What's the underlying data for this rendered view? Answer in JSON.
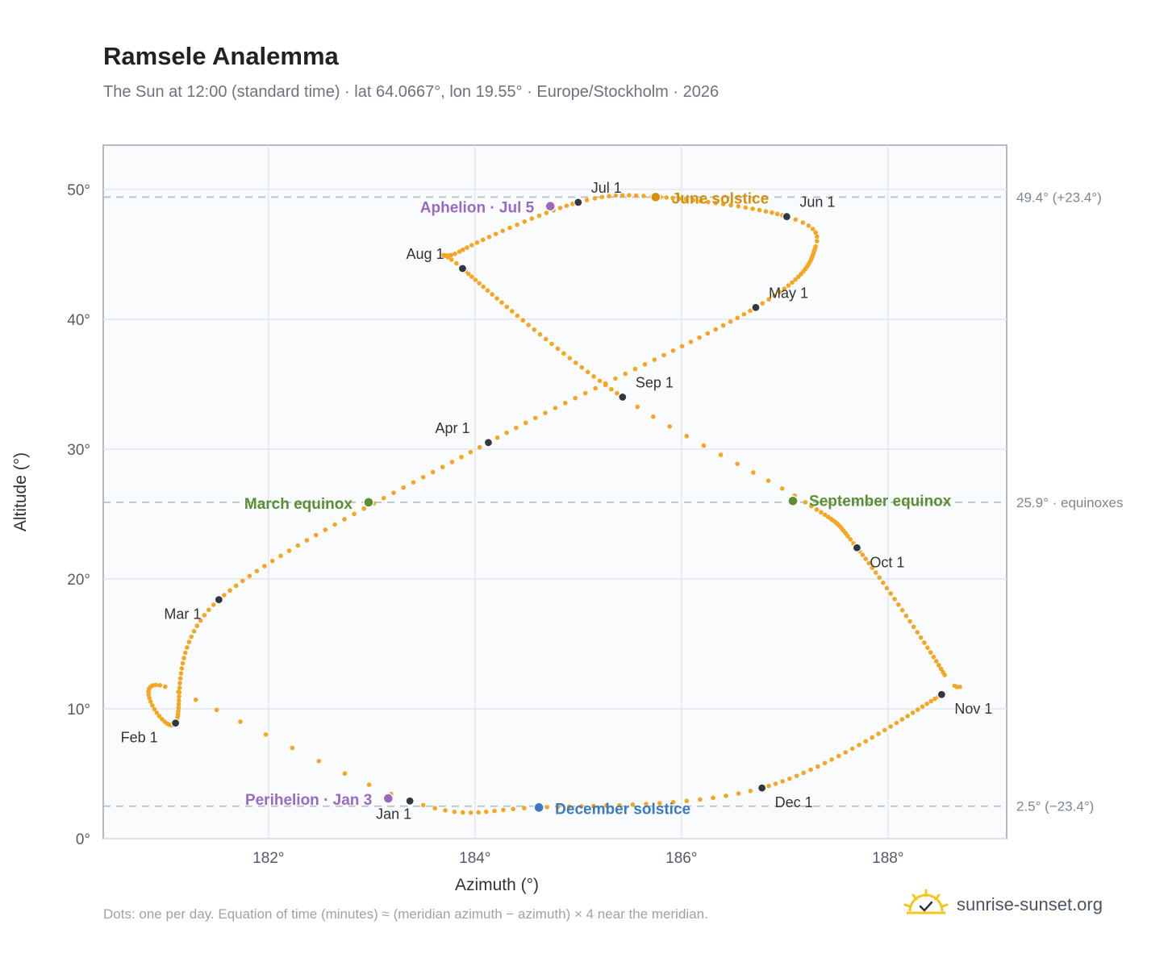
{
  "title": "Ramsele Analemma",
  "subtitle": "The Sun at 12:00 (standard time) · lat 64.0667°, lon 19.55° · Europe/Stockholm · 2026",
  "footnote": "Dots: one per day. Equation of time (minutes) ≈ (meridian azimuth − azimuth) × 4 near the meridian.",
  "brand": {
    "text": "sunrise-sunset.org",
    "icon": "sunrise-icon"
  },
  "colors": {
    "curve": "#f5a623",
    "month_dot": "#333840",
    "solstice_june": "#d4900a",
    "solstice_december": "#3b7abf",
    "equinox": "#5a8f32",
    "apsis": "#9a6ac0",
    "reference_line": "#b8c0cc"
  },
  "chart_data": {
    "type": "scatter",
    "title": "Ramsele Analemma",
    "xlabel": "Azimuth (°)",
    "ylabel": "Altitude (°)",
    "xlim": [
      180.4,
      189.15
    ],
    "ylim": [
      0,
      53.4
    ],
    "x_ticks": [
      182,
      184,
      186,
      188
    ],
    "x_tick_labels": [
      "182°",
      "184°",
      "186°",
      "188°"
    ],
    "y_ticks": [
      0,
      10,
      20,
      30,
      40,
      50
    ],
    "y_tick_labels": [
      "0°",
      "10°",
      "20°",
      "30°",
      "40°",
      "50°"
    ],
    "grid": true,
    "reference_lines": [
      {
        "y": 49.4,
        "label": "49.4° (+23.4°)"
      },
      {
        "y": 25.9,
        "label": "25.9° · equinoxes"
      },
      {
        "y": 2.5,
        "label": "2.5° (−23.4°)"
      }
    ],
    "month_markers": [
      {
        "label": "Jan 1",
        "x": 183.37,
        "y": 2.9
      },
      {
        "label": "Feb 1",
        "x": 181.1,
        "y": 8.9
      },
      {
        "label": "Mar 1",
        "x": 181.52,
        "y": 18.4
      },
      {
        "label": "Apr 1",
        "x": 184.13,
        "y": 30.5
      },
      {
        "label": "May 1",
        "x": 186.72,
        "y": 40.9
      },
      {
        "label": "Jun 1",
        "x": 187.02,
        "y": 47.9
      },
      {
        "label": "Jul 1",
        "x": 185.0,
        "y": 49.0
      },
      {
        "label": "Aug 1",
        "x": 183.88,
        "y": 43.9
      },
      {
        "label": "Sep 1",
        "x": 185.43,
        "y": 34.0
      },
      {
        "label": "Oct 1",
        "x": 187.7,
        "y": 22.4
      },
      {
        "label": "Nov 1",
        "x": 188.52,
        "y": 11.1
      },
      {
        "label": "Dec 1",
        "x": 186.78,
        "y": 3.9
      }
    ],
    "events": [
      {
        "label": "June solstice",
        "x": 185.75,
        "y": 49.4,
        "kind": "solstice_june"
      },
      {
        "label": "December solstice",
        "x": 184.62,
        "y": 2.4,
        "kind": "solstice_december"
      },
      {
        "label": "March equinox",
        "x": 182.97,
        "y": 25.9,
        "kind": "equinox"
      },
      {
        "label": "September equinox",
        "x": 187.08,
        "y": 26.0,
        "kind": "equinox"
      },
      {
        "label": "Aphelion · Jul 5",
        "x": 184.73,
        "y": 48.7,
        "kind": "apsis"
      },
      {
        "label": "Perihelion · Jan 3",
        "x": 183.16,
        "y": 3.1,
        "kind": "apsis"
      }
    ]
  }
}
